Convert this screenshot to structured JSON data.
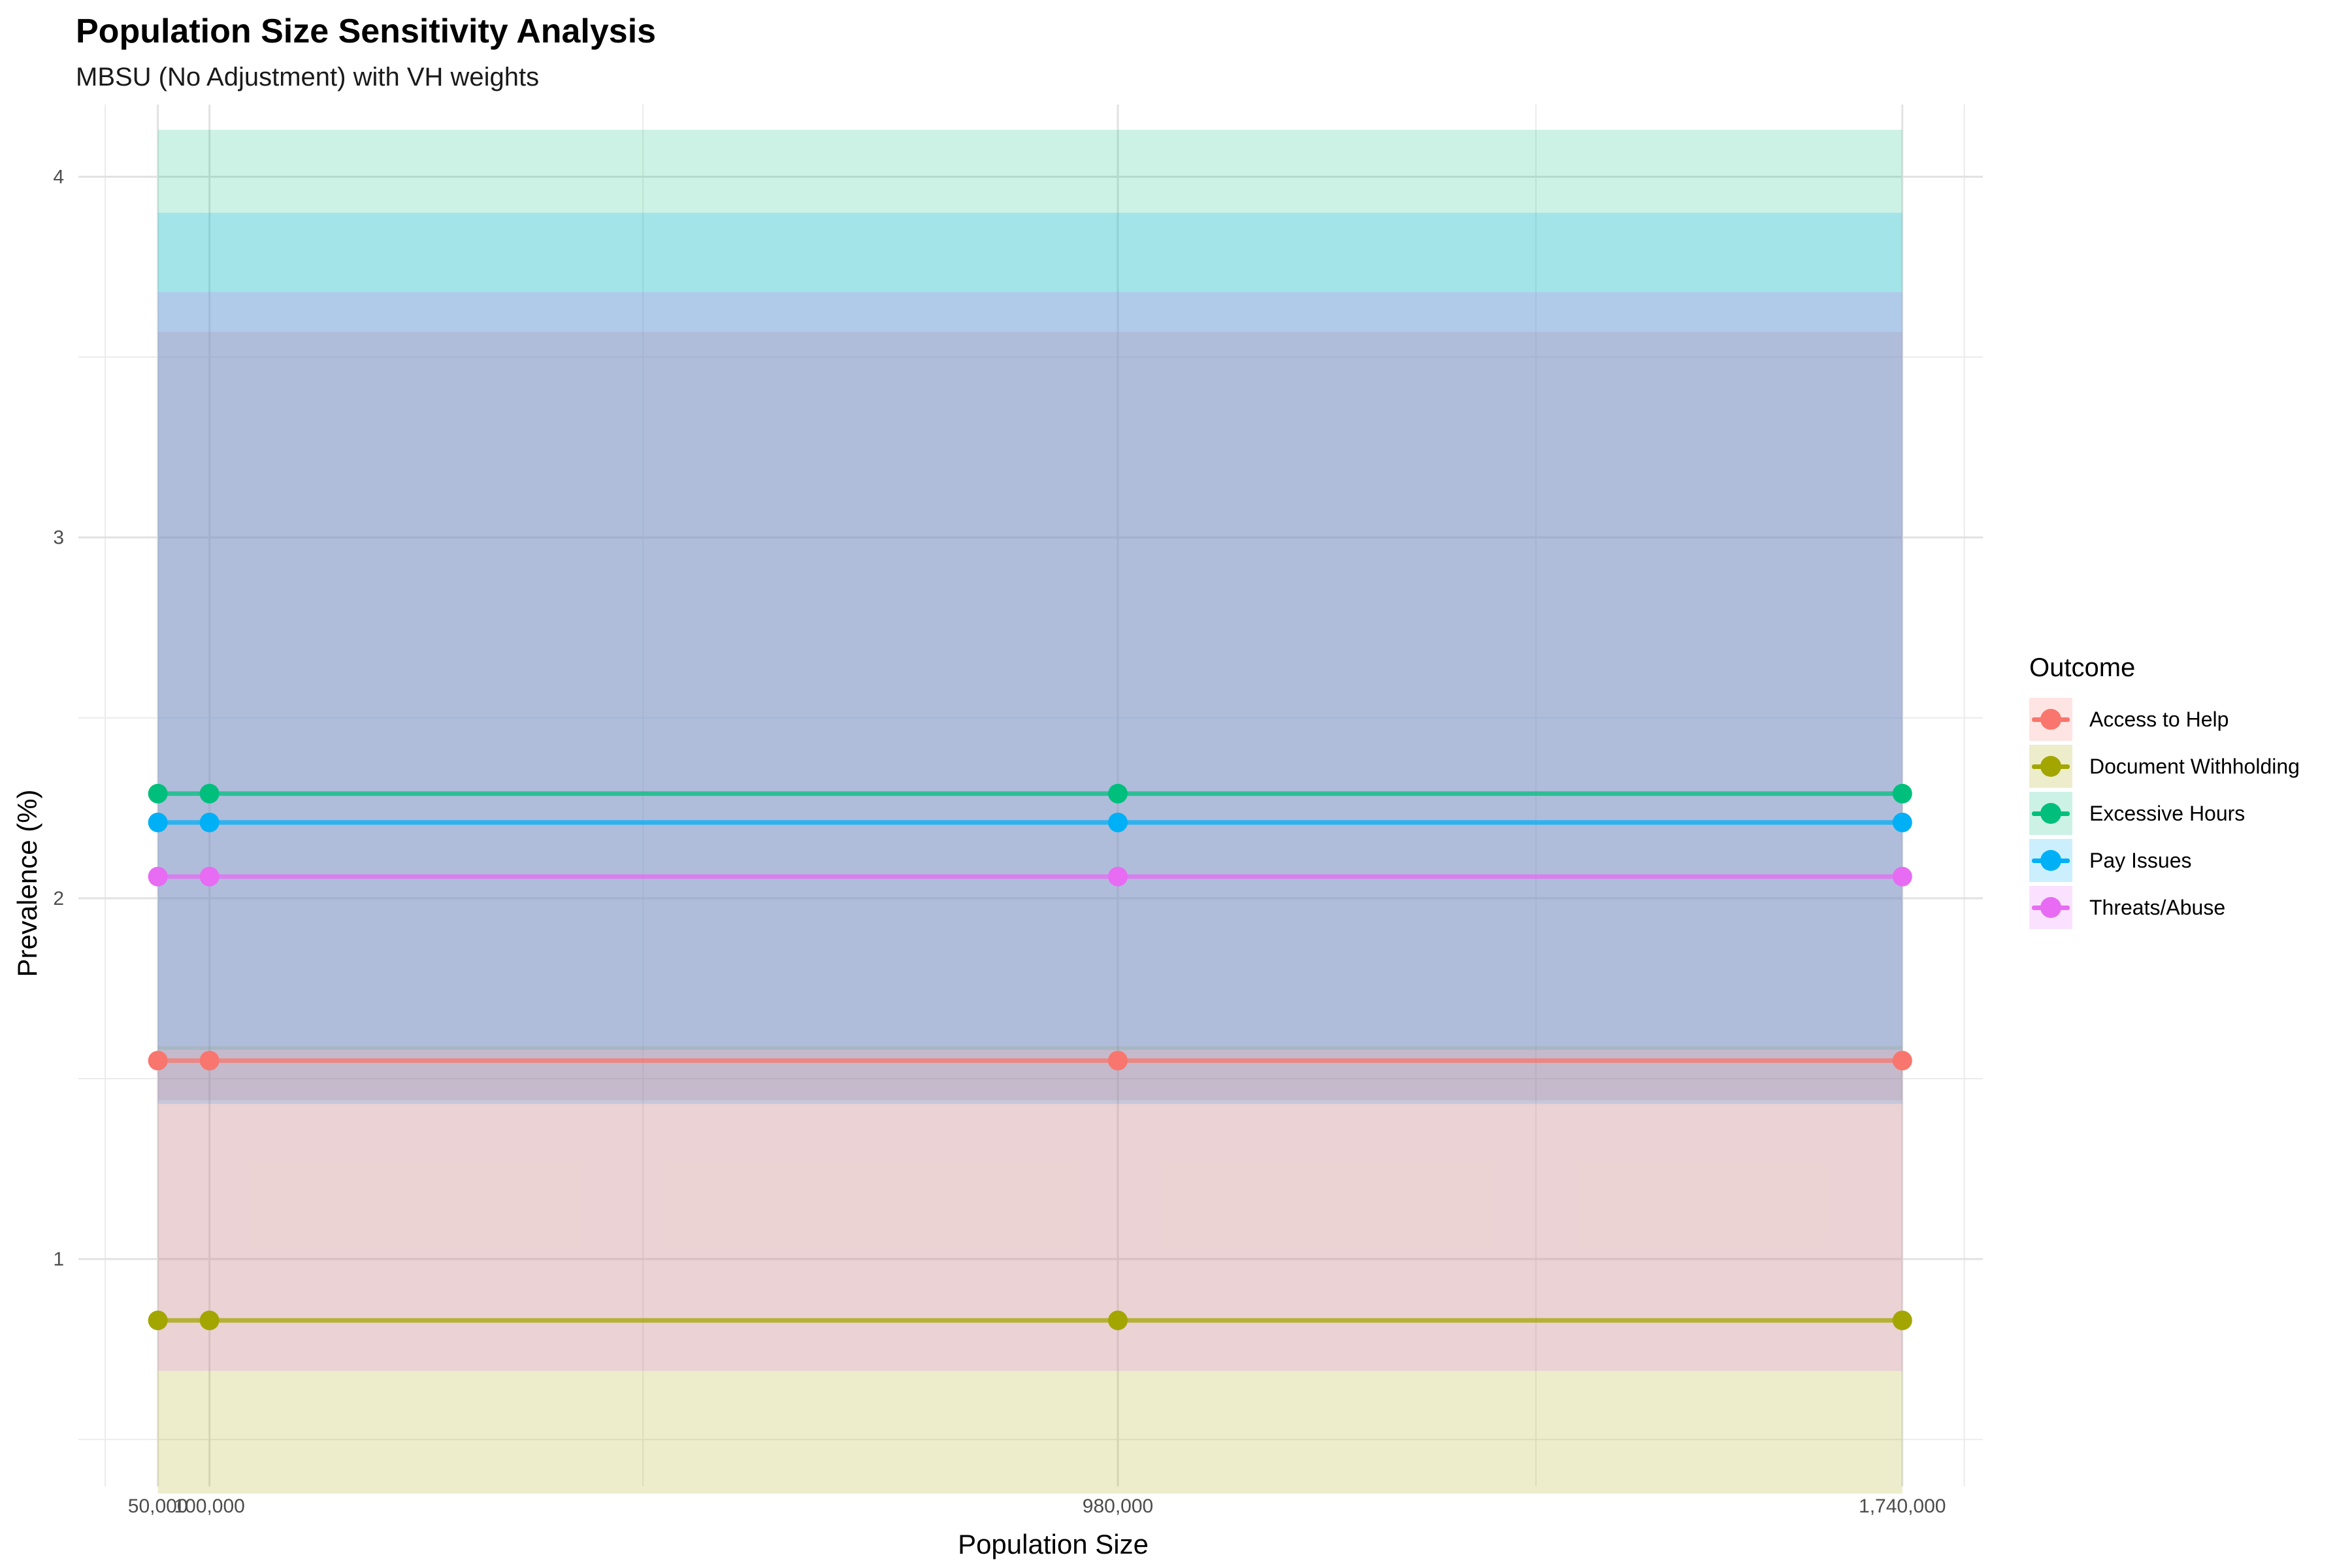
{
  "chart_data": {
    "type": "line",
    "title": "Population Size Sensitivity Analysis",
    "subtitle": "MBSU (No Adjustment) with VH weights",
    "xlabel": "Population Size",
    "ylabel": "Prevalence (%)",
    "x": [
      50000,
      100000,
      980000,
      1740000
    ],
    "x_tick_labels": [
      "50,000",
      "100,000",
      "980,000",
      "1,740,000"
    ],
    "x_minor_ticks": [
      -1000,
      520000,
      1385000,
      1800000
    ],
    "xlim": [
      -27000,
      1818000
    ],
    "ylim": [
      0.37,
      4.2
    ],
    "y_ticks": [
      1,
      2,
      3,
      4
    ],
    "y_minor_ticks": [
      0.5,
      1.5,
      2.5,
      3.5
    ],
    "grid": true,
    "legend_title": "Outcome",
    "legend_position": "right",
    "series": [
      {
        "name": "Access to Help",
        "color": "#F8766D",
        "values": [
          1.55,
          1.55,
          1.55,
          1.55
        ],
        "ci_low": 1.44,
        "ci_high": 3.57
      },
      {
        "name": "Document Withholding",
        "color": "#A3A500",
        "values": [
          0.83,
          0.83,
          0.83,
          0.83
        ],
        "ci_low": 0.35,
        "ci_high": 1.59
      },
      {
        "name": "Excessive Hours",
        "color": "#00BF7D",
        "values": [
          2.29,
          2.29,
          2.29,
          2.29
        ],
        "ci_low": 1.58,
        "ci_high": 4.13
      },
      {
        "name": "Pay Issues",
        "color": "#00B0F6",
        "values": [
          2.21,
          2.21,
          2.21,
          2.21
        ],
        "ci_low": 1.43,
        "ci_high": 3.9
      },
      {
        "name": "Threats/Abuse",
        "color": "#E76BF3",
        "values": [
          2.06,
          2.06,
          2.06,
          2.06
        ],
        "ci_low": 0.69,
        "ci_high": 3.68
      }
    ]
  }
}
